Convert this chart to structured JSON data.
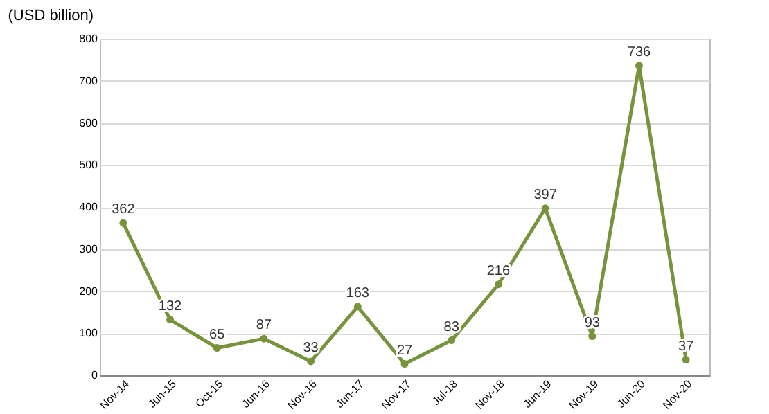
{
  "chart_data": {
    "type": "line",
    "ylabel": "(USD billion)",
    "categories": [
      "Nov-14",
      "Jun-15",
      "Oct-15",
      "Jun-16",
      "Nov-16",
      "Jun-17",
      "Nov-17",
      "Jul-18",
      "Nov-18",
      "Jun-19",
      "Nov-19",
      "Jun-20",
      "Nov-20"
    ],
    "series": [
      {
        "color": "#77933c",
        "values": [
          362,
          132,
          65,
          87,
          33,
          163,
          27,
          83,
          216,
          397,
          93,
          736,
          37
        ]
      }
    ],
    "ylim": [
      0,
      800
    ],
    "yticks": [
      0,
      100,
      200,
      300,
      400,
      500,
      600,
      700,
      800
    ],
    "grid": "y",
    "marker": "circle",
    "data_labels": true
  }
}
